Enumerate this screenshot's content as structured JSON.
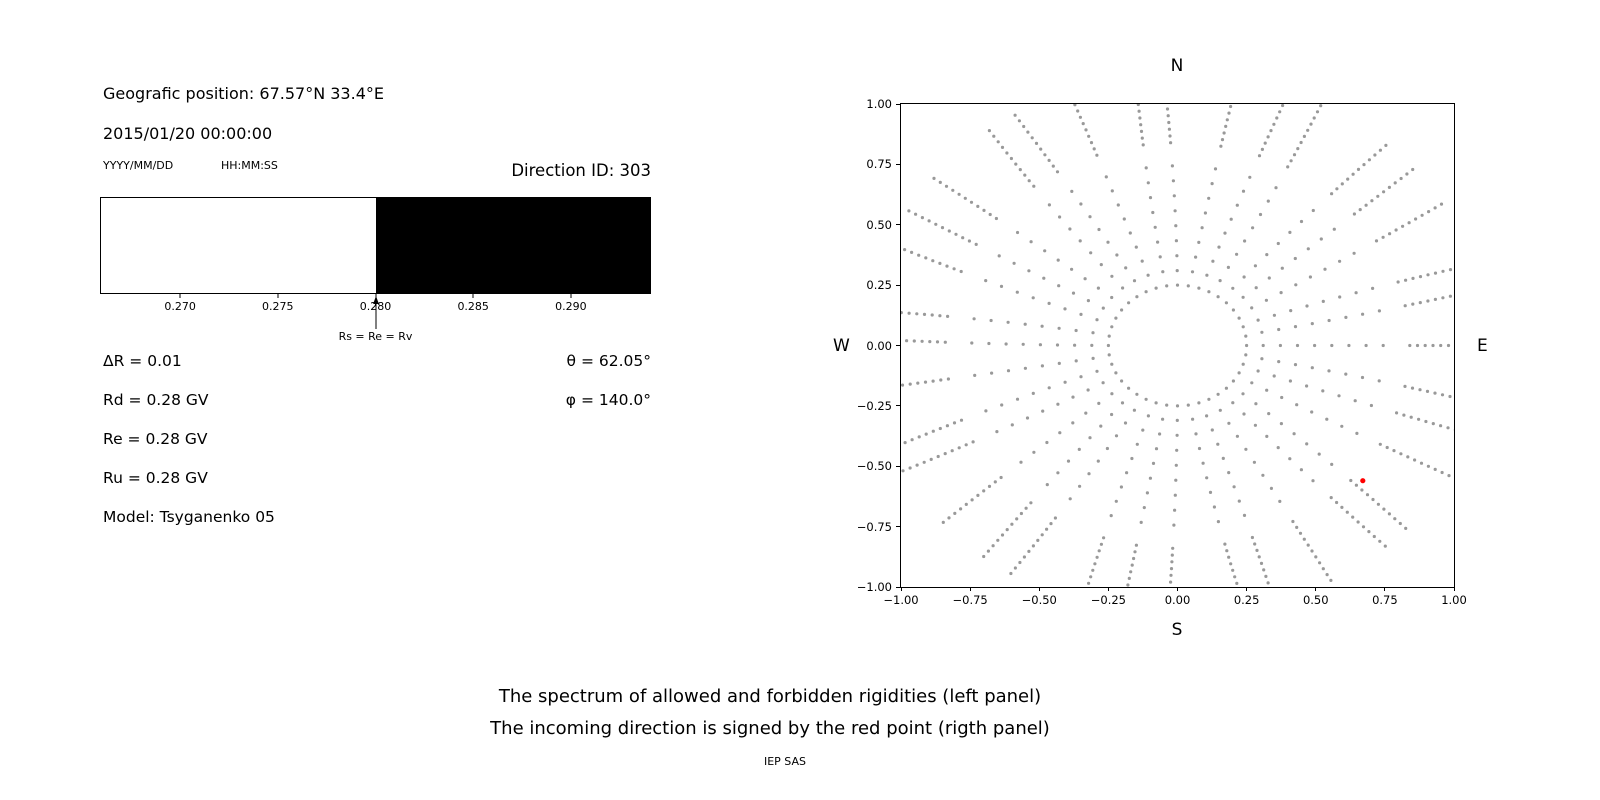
{
  "left_panel": {
    "geo_position": "Geografic position: 67.57°N 33.4°E",
    "datetime": "2015/01/20 00:00:00",
    "date_format": "YYYY/MM/DD",
    "time_format": "HH:MM:SS",
    "direction_id": "Direction ID: 303",
    "params": [
      "ΔR = 0.01",
      "Rd = 0.28 GV",
      "Re = 0.28 GV",
      "Ru = 0.28 GV",
      "Model: Tsyganenko 05"
    ],
    "angles": [
      "θ = 62.05°",
      "φ = 140.0°"
    ]
  },
  "caption": {
    "line1": "The spectrum of allowed and forbidden rigidities (left panel)",
    "line2": "The incoming direction is signed by the red point (rigth panel)",
    "credit": "IEP SAS"
  },
  "chart_data": [
    {
      "type": "area",
      "panel": "left",
      "description": "Spectrum of allowed (white) and forbidden (black) rigidities in GV",
      "xlim": [
        0.2659,
        0.2941
      ],
      "xticks": [
        0.27,
        0.275,
        0.28,
        0.285,
        0.29
      ],
      "xtick_labels": [
        "0.270",
        "0.275",
        "0.280",
        "0.285",
        "0.290"
      ],
      "regions": [
        {
          "name": "allowed",
          "from": 0.2659,
          "to": 0.28,
          "color": "#ffffff"
        },
        {
          "name": "forbidden",
          "from": 0.28,
          "to": 0.2941,
          "color": "#000000"
        }
      ],
      "boundary": 0.28,
      "boundary_annotation": "Rs = Re = Rv",
      "values": {
        "Rs": 0.28,
        "Re": 0.28,
        "Rv": 0.28,
        "Rd": 0.28,
        "Ru": 0.28,
        "deltaR": 0.01
      }
    },
    {
      "type": "scatter",
      "panel": "right",
      "description": "Incoming direction map: gray dotted radial spokes with inner dotted ring; red point marks incoming direction",
      "xlim": [
        -1.0,
        1.0
      ],
      "ylim": [
        -1.0,
        1.0
      ],
      "xticks": [
        -1.0,
        -0.75,
        -0.5,
        -0.25,
        0.0,
        0.25,
        0.5,
        0.75,
        1.0
      ],
      "xtick_labels": [
        "−1.00",
        "−0.75",
        "−0.50",
        "−0.25",
        "0.00",
        "0.25",
        "0.50",
        "0.75",
        "1.00"
      ],
      "yticks": [
        1.0,
        0.75,
        0.5,
        0.25,
        0.0,
        -0.25,
        -0.5,
        -0.75,
        -1.0
      ],
      "ytick_labels": [
        "1.00",
        "0.75",
        "0.50",
        "0.25",
        "0.00",
        "−0.25",
        "−0.50",
        "−0.75",
        "−1.00"
      ],
      "compass": {
        "top": "N",
        "bottom": "S",
        "left": "W",
        "right": "E"
      },
      "dot_color": "#999999",
      "red_point": {
        "x": 0.67,
        "y": -0.56,
        "color": "#ff0000"
      },
      "pattern": {
        "num_spokes": 36,
        "inner_ring_radius": 0.25,
        "inner_ring_count": 40,
        "spoke_start": 0.31,
        "sparse_end": 0.8,
        "sparse_step": 0.062,
        "dense_start": 0.84,
        "dense_end": 1.12,
        "dense_step": 0.028,
        "curve_amp": 3.0
      }
    }
  ]
}
